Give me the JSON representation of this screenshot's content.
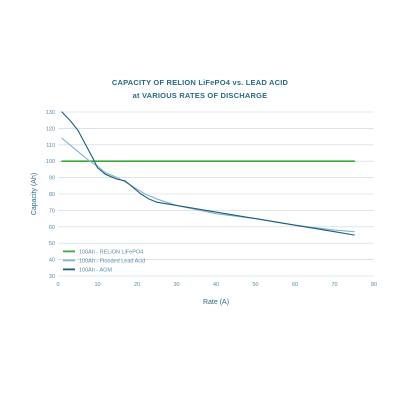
{
  "chart_data": {
    "type": "line",
    "title_line1": "CAPACITY OF RELION LiFePO4 vs. LEAD ACID",
    "title_line2": "at VARIOUS RATES OF DISCHARGE",
    "xlabel": "Rate (A)",
    "ylabel": "Capacity (Ah)",
    "xlim": [
      0,
      80
    ],
    "ylim": [
      30,
      130
    ],
    "x_ticks": [
      0,
      10,
      20,
      30,
      40,
      50,
      60,
      70,
      80
    ],
    "y_ticks": [
      30,
      40,
      50,
      60,
      70,
      80,
      90,
      100,
      110,
      120,
      130
    ],
    "grid": true,
    "legend_position": "bottom-left",
    "series": [
      {
        "name": "100Ah - RELiON LiFePO4",
        "color": "#3aaa35",
        "x": [
          1,
          75
        ],
        "y": [
          100,
          100
        ]
      },
      {
        "name": "100Ah - Flooded Lead Acid",
        "color": "#7fb3d0",
        "x": [
          1,
          5,
          8,
          10,
          12,
          15,
          18,
          20,
          22,
          25,
          30,
          40,
          50,
          60,
          70,
          75
        ],
        "y": [
          114,
          106,
          100,
          97,
          93,
          90,
          86,
          83,
          80,
          77,
          73,
          68,
          65,
          61,
          58,
          57
        ]
      },
      {
        "name": "100Ah - AGM",
        "color": "#1a5e7e",
        "x": [
          1,
          3,
          5,
          7,
          9,
          10,
          12,
          15,
          17,
          19,
          21,
          23,
          25,
          30,
          40,
          50,
          60,
          70,
          75
        ],
        "y": [
          130,
          125,
          119,
          110,
          101,
          96,
          92,
          89,
          88,
          84,
          80,
          77,
          75,
          73,
          69,
          65,
          61,
          57,
          55
        ]
      }
    ]
  }
}
